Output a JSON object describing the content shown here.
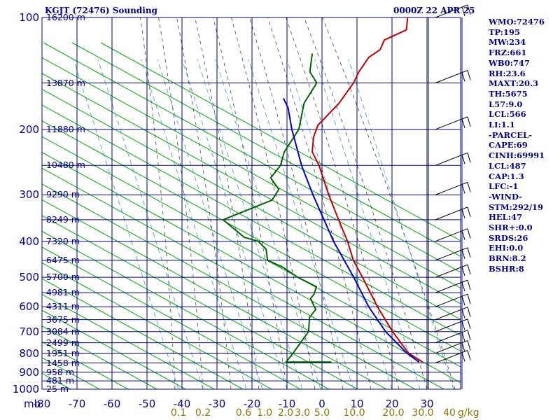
{
  "header": {
    "title_left": "KGJT (72476) Sounding",
    "title_right": "0000Z 22 APR 25"
  },
  "indices": [
    "WMO:72476",
    "TP:195",
    "MW:234",
    "FRZ:661",
    "WB0:747",
    "RH:23.6",
    "MAXT:20.3",
    "TH:5675",
    "L57:9.0",
    "LCL:566",
    "LI:1.1",
    "-PARCEL-",
    "CAPE:69",
    "CINH:69991",
    "LCL:487",
    "CAP:1.3",
    "LFC:-1",
    "-WIND-",
    "STM:292/19",
    "HEL:47",
    "SHR+:0.0",
    "SRDS:26",
    "EHI:0.0",
    "BRN:8.2",
    "BSHR:8"
  ],
  "colors": {
    "axis": "#00008b",
    "temperature": "#c00000",
    "dewpoint": "#006400",
    "parcel": "#0000c0",
    "dry_adiabat": "#00aa00",
    "moist_adiabat": "#444444",
    "mixing_ratio": "#3399cc",
    "mixing_label": "#8b7500"
  },
  "chart_data": {
    "type": "line",
    "title": "KGJT (72476) Sounding",
    "subtitle": "0000Z 22 APR 25",
    "xlabel": "",
    "ylabel": "mb",
    "y_scale": "log",
    "ylim": [
      1000,
      100
    ],
    "xlim": [
      -80,
      40
    ],
    "pressure_ticks": [
      {
        "label": "100",
        "value": 100
      },
      {
        "label": "200",
        "value": 200
      },
      {
        "label": "300",
        "value": 300
      },
      {
        "label": "400",
        "value": 400
      },
      {
        "label": "500",
        "value": 500
      },
      {
        "label": "600",
        "value": 600
      },
      {
        "label": "700",
        "value": 700
      },
      {
        "label": "800",
        "value": 800
      },
      {
        "label": "900",
        "value": 900
      },
      {
        "label": "1000",
        "value": 1000
      }
    ],
    "temperature_ticks": [
      {
        "label": "-80",
        "value": -80
      },
      {
        "label": "-70",
        "value": -70
      },
      {
        "label": "-60",
        "value": -60
      },
      {
        "label": "-50",
        "value": -50
      },
      {
        "label": "-40",
        "value": -40
      },
      {
        "label": "-30",
        "value": -30
      },
      {
        "label": "-20",
        "value": -20
      },
      {
        "label": "-10",
        "value": -10
      },
      {
        "label": "0",
        "value": 0
      },
      {
        "label": "10",
        "value": 10
      },
      {
        "label": "20",
        "value": 20
      },
      {
        "label": "30",
        "value": 30
      },
      {
        "label": "40",
        "value": 40
      }
    ],
    "mixing_ratio_ticks": [
      {
        "label": "0.1",
        "value": 0.1
      },
      {
        "label": "0.2",
        "value": 0.2
      },
      {
        "label": "0.6",
        "value": 0.6
      },
      {
        "label": "1.0",
        "value": 1.0
      },
      {
        "label": "2.0",
        "value": 2.0
      },
      {
        "label": "3.0",
        "value": 3.0
      },
      {
        "label": "5.0",
        "value": 5.0
      },
      {
        "label": "10.0",
        "value": 10.0
      },
      {
        "label": "20.0",
        "value": 20.0
      },
      {
        "label": "30.0",
        "value": 30.0
      },
      {
        "label": "40",
        "value": 40
      }
    ],
    "mixing_ratio_unit": "g/kg",
    "height_labels": [
      {
        "label": "16200 m",
        "p": 100
      },
      {
        "label": "13870 m",
        "p": 150
      },
      {
        "label": "11880 m",
        "p": 200
      },
      {
        "label": "10480 m",
        "p": 250
      },
      {
        "label": "9290 m",
        "p": 300
      },
      {
        "label": "8249 m",
        "p": 350
      },
      {
        "label": "7320 m",
        "p": 400
      },
      {
        "label": "6475 m",
        "p": 450
      },
      {
        "label": "5700 m",
        "p": 500
      },
      {
        "label": "4981 m",
        "p": 550
      },
      {
        "label": "4311 m",
        "p": 600
      },
      {
        "label": "3675 m",
        "p": 650
      },
      {
        "label": "3084 m",
        "p": 700
      },
      {
        "label": "2499 m",
        "p": 750
      },
      {
        "label": "1951 m",
        "p": 800
      },
      {
        "label": "1458 m",
        "p": 850
      },
      {
        "label": "958 m",
        "p": 900
      },
      {
        "label": "481 m",
        "p": 950
      },
      {
        "label": "25 m",
        "p": 1000
      }
    ],
    "series": [
      {
        "key": "temperature",
        "points": [
          [
            845,
            22.5
          ],
          [
            800,
            16.5
          ],
          [
            700,
            7.0
          ],
          [
            600,
            -3.0
          ],
          [
            500,
            -14.0
          ],
          [
            450,
            -20.5
          ],
          [
            400,
            -26.5
          ],
          [
            350,
            -34.0
          ],
          [
            300,
            -42.5
          ],
          [
            250,
            -52.0
          ],
          [
            230,
            -57.0
          ],
          [
            210,
            -60.0
          ],
          [
            195,
            -61.5
          ],
          [
            170,
            -60.5
          ],
          [
            150,
            -61.0
          ],
          [
            140,
            -62.0
          ],
          [
            128,
            -62.5
          ],
          [
            122,
            -61.0
          ],
          [
            115,
            -62.0
          ],
          [
            108,
            -58.0
          ],
          [
            100,
            -60.5
          ]
        ]
      },
      {
        "key": "dewpoint",
        "points": [
          [
            845,
            -3.5
          ],
          [
            845,
            -16.5
          ],
          [
            800,
            -16.5
          ],
          [
            700,
            -17.0
          ],
          [
            640,
            -20.0
          ],
          [
            610,
            -20.0
          ],
          [
            590,
            -22.0
          ],
          [
            570,
            -24.0
          ],
          [
            555,
            -24.0
          ],
          [
            530,
            -25.0
          ],
          [
            500,
            -32.5
          ],
          [
            470,
            -39.0
          ],
          [
            450,
            -45.0
          ],
          [
            420,
            -48.0
          ],
          [
            400,
            -52.0
          ],
          [
            390,
            -57.0
          ],
          [
            350,
            -67.0
          ],
          [
            310,
            -57.5
          ],
          [
            290,
            -58.0
          ],
          [
            270,
            -63.0
          ],
          [
            250,
            -63.0
          ],
          [
            230,
            -65.0
          ],
          [
            200,
            -66.0
          ],
          [
            170,
            -70.5
          ],
          [
            150,
            -71.5
          ],
          [
            140,
            -76.0
          ],
          [
            125,
            -79.5
          ]
        ]
      },
      {
        "key": "parcel",
        "points": [
          [
            845,
            21.5
          ],
          [
            800,
            16.0
          ],
          [
            700,
            5.0
          ],
          [
            600,
            -5.5
          ],
          [
            500,
            -16.5
          ],
          [
            400,
            -30.5
          ],
          [
            300,
            -47.0
          ],
          [
            250,
            -57.0
          ],
          [
            200,
            -68.0
          ],
          [
            175,
            -74.0
          ],
          [
            165,
            -77.5
          ]
        ]
      }
    ],
    "wind_barbs": [
      {
        "p": 850
      },
      {
        "p": 800
      },
      {
        "p": 750
      },
      {
        "p": 700
      },
      {
        "p": 650
      },
      {
        "p": 600
      },
      {
        "p": 550
      },
      {
        "p": 500
      },
      {
        "p": 450
      },
      {
        "p": 400
      },
      {
        "p": 350
      },
      {
        "p": 300
      },
      {
        "p": 250
      },
      {
        "p": 200
      },
      {
        "p": 150
      },
      {
        "p": 100
      }
    ]
  }
}
